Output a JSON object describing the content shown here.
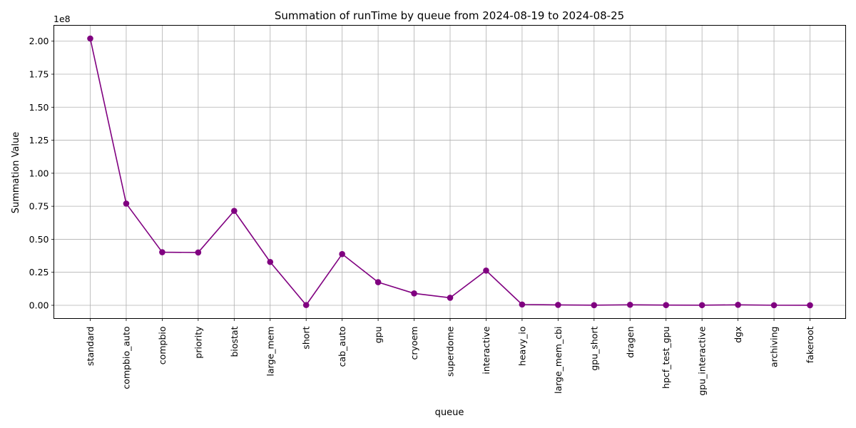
{
  "chart_data": {
    "type": "line",
    "title": "Summation of runTime by queue from 2024-08-19 to 2024-08-25",
    "xlabel": "queue",
    "ylabel": "Summation Value",
    "y_offset_label": "1e8",
    "categories": [
      "standard",
      "compbio_auto",
      "compbio",
      "priority",
      "biostat",
      "large_mem",
      "short",
      "cab_auto",
      "gpu",
      "cryoem",
      "superdome",
      "interactive",
      "heavy_io",
      "large_mem_cbi",
      "gpu_short",
      "dragen",
      "hpcf_test_gpu",
      "gpu_interactive",
      "dgx",
      "archiving",
      "fakeroot"
    ],
    "series": [
      {
        "values": [
          202000000,
          77000000,
          40200000,
          40000000,
          71500000,
          32800000,
          200000,
          38800000,
          17500000,
          9000000,
          5700000,
          26300000,
          600000,
          300000,
          100000,
          400000,
          150000,
          120000,
          350000,
          60000,
          30000
        ],
        "color": "#800080"
      }
    ],
    "ylim": [
      -10000000,
      212000000
    ],
    "yticks": [
      0,
      25000000,
      50000000,
      75000000,
      100000000,
      125000000,
      150000000,
      175000000,
      200000000
    ],
    "ytick_labels": [
      "0.00",
      "0.25",
      "0.50",
      "0.75",
      "1.00",
      "1.25",
      "1.50",
      "1.75",
      "2.00"
    ],
    "grid": true,
    "legend": "none"
  }
}
